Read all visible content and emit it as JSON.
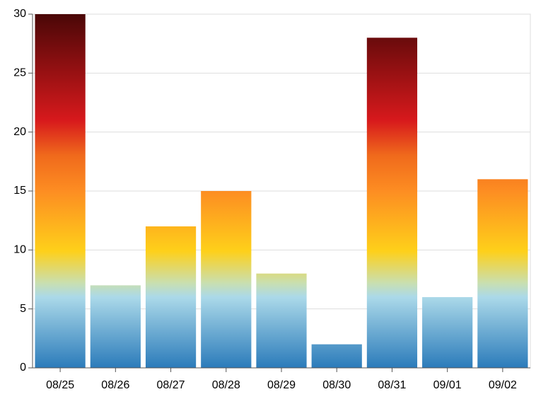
{
  "chart_data": {
    "type": "bar",
    "categories": [
      "08/25",
      "08/26",
      "08/27",
      "08/28",
      "08/29",
      "08/30",
      "08/31",
      "09/01",
      "09/02"
    ],
    "values": [
      30,
      7,
      12,
      15,
      8,
      2,
      28,
      6,
      16
    ],
    "ylim": [
      0,
      30
    ],
    "yticks": [
      0,
      5,
      10,
      15,
      20,
      25,
      30
    ],
    "grid": true
  }
}
